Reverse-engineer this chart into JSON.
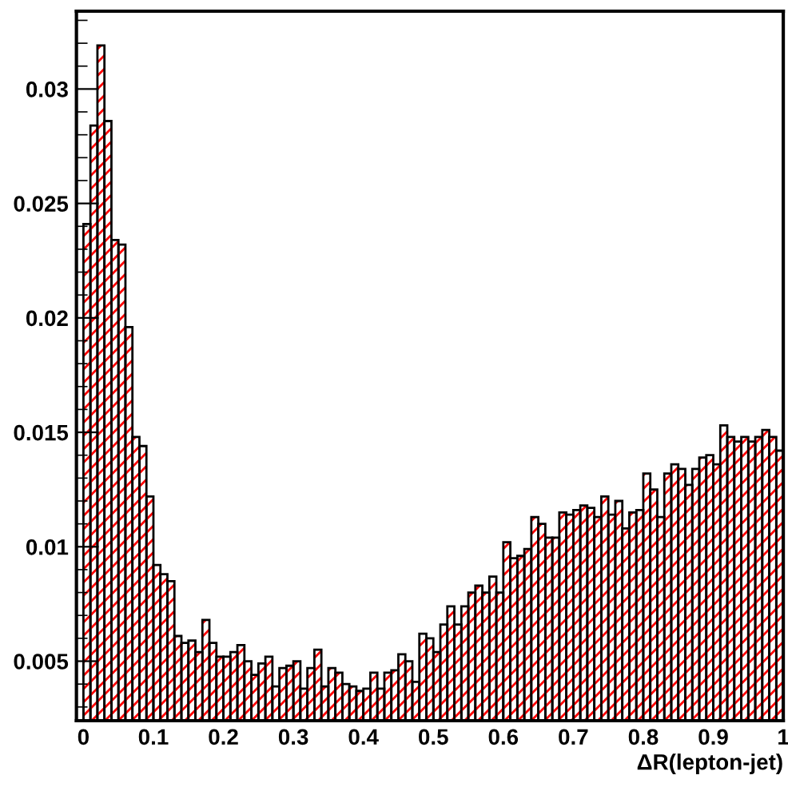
{
  "chart_data": {
    "type": "histogram",
    "xlabel": "ΔR(lepton-jet)",
    "color": "#000000",
    "bins": [
      0,
      0.01,
      0.02,
      0.03,
      0.04,
      0.05,
      0.06,
      0.07,
      0.08,
      0.09,
      0.1,
      0.11,
      0.12,
      0.13,
      0.14,
      0.15,
      0.16,
      0.17,
      0.18,
      0.19,
      0.2,
      0.21,
      0.22,
      0.23,
      0.24,
      0.25,
      0.26,
      0.27,
      0.28,
      0.29,
      0.3,
      0.31,
      0.32,
      0.33,
      0.34,
      0.35,
      0.36,
      0.37,
      0.38,
      0.39,
      0.4,
      0.41,
      0.42,
      0.43,
      0.44,
      0.45,
      0.46,
      0.47,
      0.48,
      0.49,
      0.5,
      0.51,
      0.52,
      0.53,
      0.54,
      0.55,
      0.56,
      0.57,
      0.58,
      0.59,
      0.6,
      0.61,
      0.62,
      0.63,
      0.64,
      0.65,
      0.66,
      0.67,
      0.68,
      0.69,
      0.7,
      0.71,
      0.72,
      0.73,
      0.74,
      0.75,
      0.76,
      0.77,
      0.78,
      0.79,
      0.8,
      0.81,
      0.82,
      0.83,
      0.84,
      0.85,
      0.86,
      0.87,
      0.88,
      0.89,
      0.9,
      0.91,
      0.92,
      0.93,
      0.94,
      0.95,
      0.96,
      0.97,
      0.98,
      0.99,
      1
    ],
    "values": [
      0.0241,
      0.0284,
      0.0319,
      0.0286,
      0.0234,
      0.0232,
      0.0196,
      0.0148,
      0.0144,
      0.0122,
      0.0092,
      0.0088,
      0.0085,
      0.0061,
      0.0058,
      0.0059,
      0.0054,
      0.0068,
      0.0058,
      0.0052,
      0.0052,
      0.0054,
      0.0057,
      0.005,
      0.0044,
      0.0049,
      0.0052,
      0.0039,
      0.0047,
      0.0048,
      0.005,
      0.0038,
      0.0047,
      0.0055,
      0.0039,
      0.0047,
      0.0045,
      0.004,
      0.0039,
      0.0037,
      0.0038,
      0.0045,
      0.0038,
      0.0045,
      0.0046,
      0.0053,
      0.005,
      0.0041,
      0.0062,
      0.006,
      0.0054,
      0.0066,
      0.0074,
      0.0066,
      0.0074,
      0.008,
      0.0083,
      0.008,
      0.0087,
      0.008,
      0.0102,
      0.0095,
      0.0096,
      0.0099,
      0.0113,
      0.011,
      0.0104,
      0.0104,
      0.0115,
      0.0114,
      0.0116,
      0.0118,
      0.0117,
      0.0113,
      0.0122,
      0.0114,
      0.012,
      0.0108,
      0.0115,
      0.0116,
      0.0132,
      0.0125,
      0.0113,
      0.0132,
      0.0136,
      0.0134,
      0.0127,
      0.0134,
      0.0139,
      0.014,
      0.0136,
      0.0153,
      0.0148,
      0.0146,
      0.0148,
      0.0146,
      0.0148,
      0.0151,
      0.0148,
      0.0142
    ],
    "xlim": [
      -0.01,
      1
    ],
    "ylim": [
      0.0024,
      0.0334
    ],
    "xticks": [
      0,
      0.1,
      0.2,
      0.3,
      0.4,
      0.5,
      0.6,
      0.7,
      0.8,
      0.9,
      1
    ],
    "yticks": [
      0.005,
      0.01,
      0.015,
      0.02,
      0.025,
      0.03
    ],
    "grid": false,
    "legend": false
  }
}
